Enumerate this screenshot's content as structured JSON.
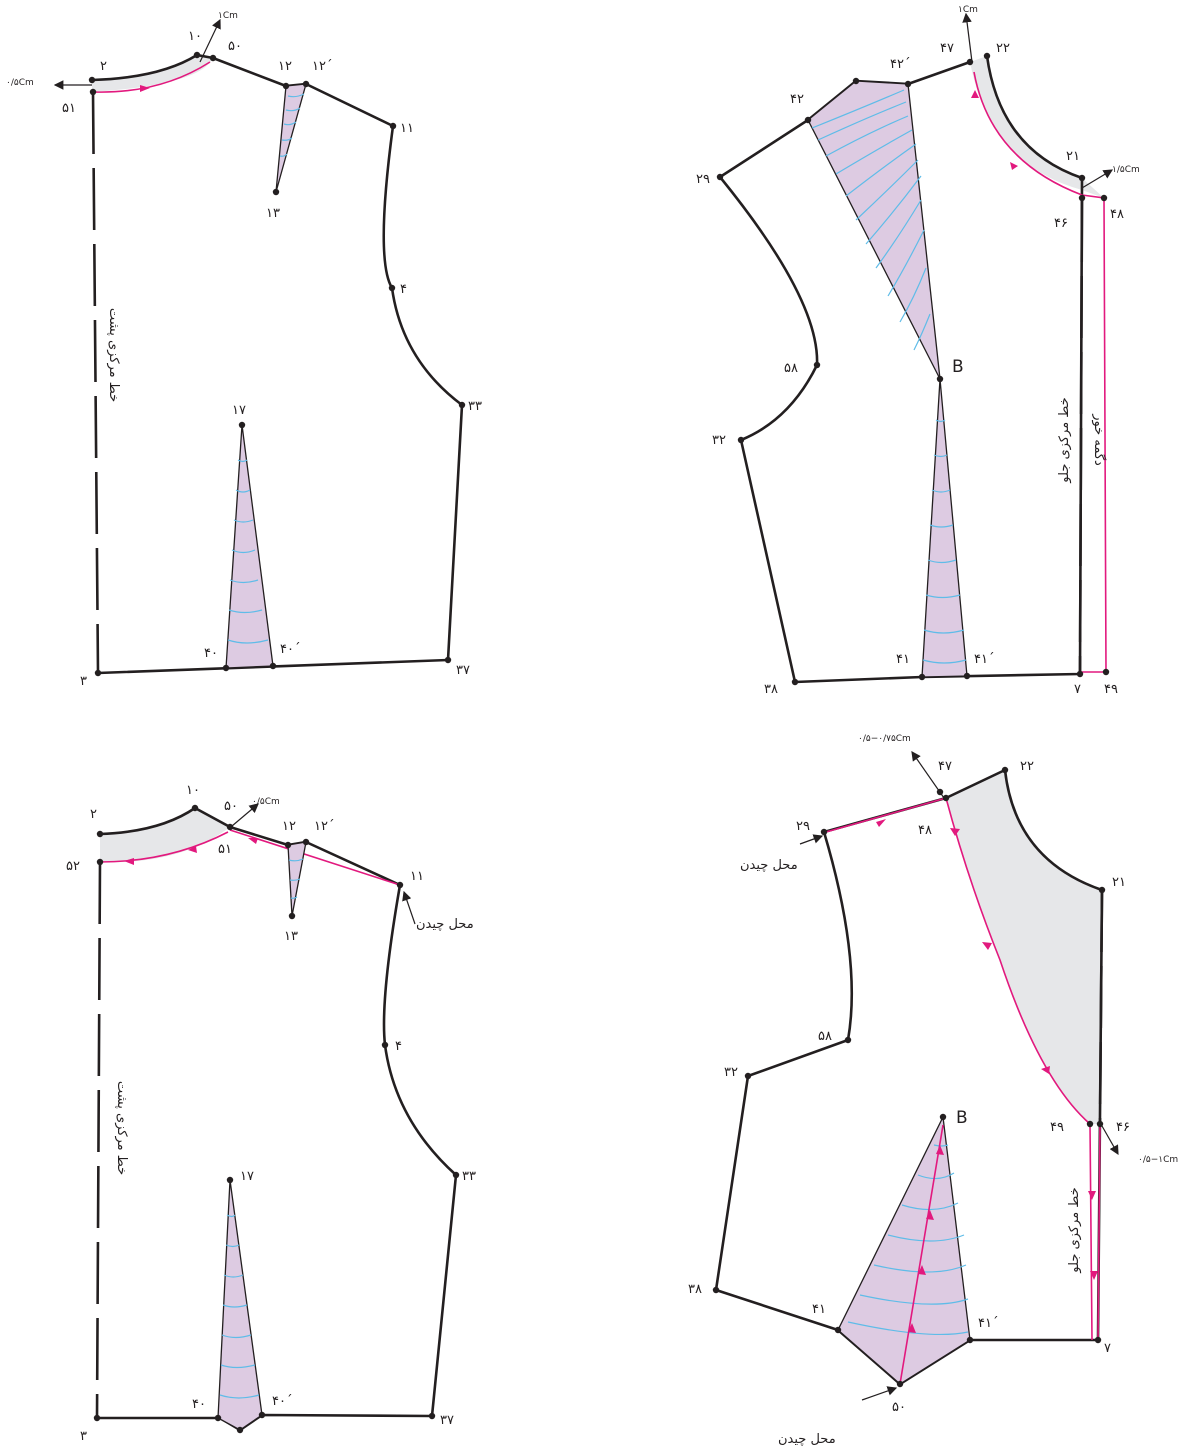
{
  "panel_back_top": {
    "labels": {
      "p2": "۲",
      "p10": "۱۰",
      "p50": "۵۰",
      "p12": "۱۲",
      "p12p": "۱۲΄",
      "p11": "۱۱",
      "p51": "۵۱",
      "p13": "۱۳",
      "p4": "۴",
      "p33": "۳۳",
      "p17": "۱۷",
      "p40": "۴۰",
      "p40p": "۴۰΄",
      "p3": "۳",
      "p37": "۳۷"
    },
    "notes": {
      "n1cm": "۱Cm",
      "n05": "۰/۵Cm"
    },
    "center_line": "خط مرکزی پشت"
  },
  "panel_front_top": {
    "labels": {
      "p42": "۴۲",
      "p42p": "۴۲΄",
      "p47": "۴۷",
      "p22": "۲۲",
      "p29": "۲۹",
      "p21": "۲۱",
      "p46": "۴۶",
      "p48": "۴۸",
      "pB": "B",
      "p58": "۵۸",
      "p32": "۳۲",
      "p38": "۳۸",
      "p41": "۴۱",
      "p41p": "۴۱΄",
      "p7": "۷",
      "p49": "۴۹"
    },
    "notes": {
      "n1cm": "۱Cm",
      "n15": "۱/۵Cm"
    },
    "center_line": "خط مرکزی جلو",
    "button_line": "دگمه خور"
  },
  "panel_back_bottom": {
    "labels": {
      "p2": "۲",
      "p10": "۱۰",
      "p50": "۵۰",
      "p12": "۱۲",
      "p12p": "۱۲΄",
      "p11": "۱۱",
      "p52": "۵۲",
      "p51": "۵۱",
      "p13": "۱۳",
      "p4": "۴",
      "p33": "۳۳",
      "p17": "۱۷",
      "p40": "۴۰",
      "p40p": "۴۰΄",
      "p3": "۳",
      "p37": "۳۷"
    },
    "notes": {
      "n05": "۰/۵Cm"
    },
    "placement": "محل چیدن",
    "center_line": "خط مرکزی پشت"
  },
  "panel_front_bottom": {
    "labels": {
      "p47": "۴۷",
      "p22": "۲۲",
      "p29": "۲۹",
      "p48": "۴۸",
      "p21": "۲۱",
      "p58": "۵۸",
      "p32": "۳۲",
      "pB": "B",
      "p49": "۴۹",
      "p46": "۴۶",
      "p38": "۳۸",
      "p41": "۴۱",
      "p41p": "۴۱΄",
      "p7": "۷",
      "p50": "۵۰"
    },
    "notes": {
      "n075": "۰/۵−۰/۷۵Cm",
      "n1": "۰/۵−۱Cm"
    },
    "placement_top": "محل چیدن",
    "placement_bottom": "محل چیدن",
    "center_line": "خط مرکزی جلو"
  },
  "colors": {
    "outline": "#231f20",
    "dart_fill": "#ddcbe2",
    "dart_arcs": "#5fbce8",
    "facing_gray": "#e6e7e9",
    "guide_magenta": "#e2197e"
  }
}
